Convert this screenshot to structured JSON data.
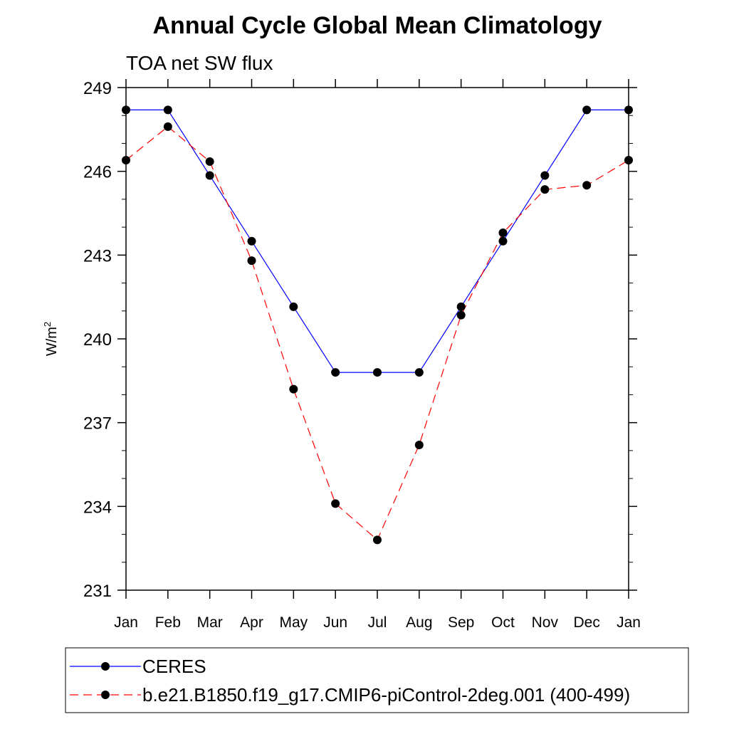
{
  "chart_data": {
    "type": "line",
    "title": "Annual Cycle Global Mean Climatology",
    "subtitle": "TOA net SW flux",
    "ylabel": "W/m",
    "ylabel_superscript": "2",
    "xlabel": "",
    "categories": [
      "Jan",
      "Feb",
      "Mar",
      "Apr",
      "May",
      "Jun",
      "Jul",
      "Aug",
      "Sep",
      "Oct",
      "Nov",
      "Dec",
      "Jan"
    ],
    "ylim": [
      231,
      249
    ],
    "yticks": [
      "231",
      "234",
      "237",
      "240",
      "243",
      "246",
      "249"
    ],
    "yticks_values": [
      231,
      234,
      237,
      240,
      243,
      246,
      249
    ],
    "grid": false,
    "legend_position": "bottom",
    "series": [
      {
        "name": "CERES",
        "color": "#0000ff",
        "dash": "solid",
        "marker": "filled-circle",
        "values": [
          248.2,
          248.2,
          245.85,
          243.5,
          241.15,
          238.8,
          238.8,
          238.8,
          241.15,
          243.5,
          245.85,
          248.2,
          248.2
        ]
      },
      {
        "name": "b.e21.B1850.f19_g17.CMIP6-piControl-2deg.001 (400-499)",
        "color": "#ff0000",
        "dash": "dashed",
        "marker": "filled-circle",
        "values": [
          246.4,
          247.6,
          246.35,
          242.8,
          238.2,
          234.1,
          232.8,
          236.2,
          240.85,
          243.8,
          245.35,
          245.5,
          246.4
        ]
      }
    ]
  }
}
